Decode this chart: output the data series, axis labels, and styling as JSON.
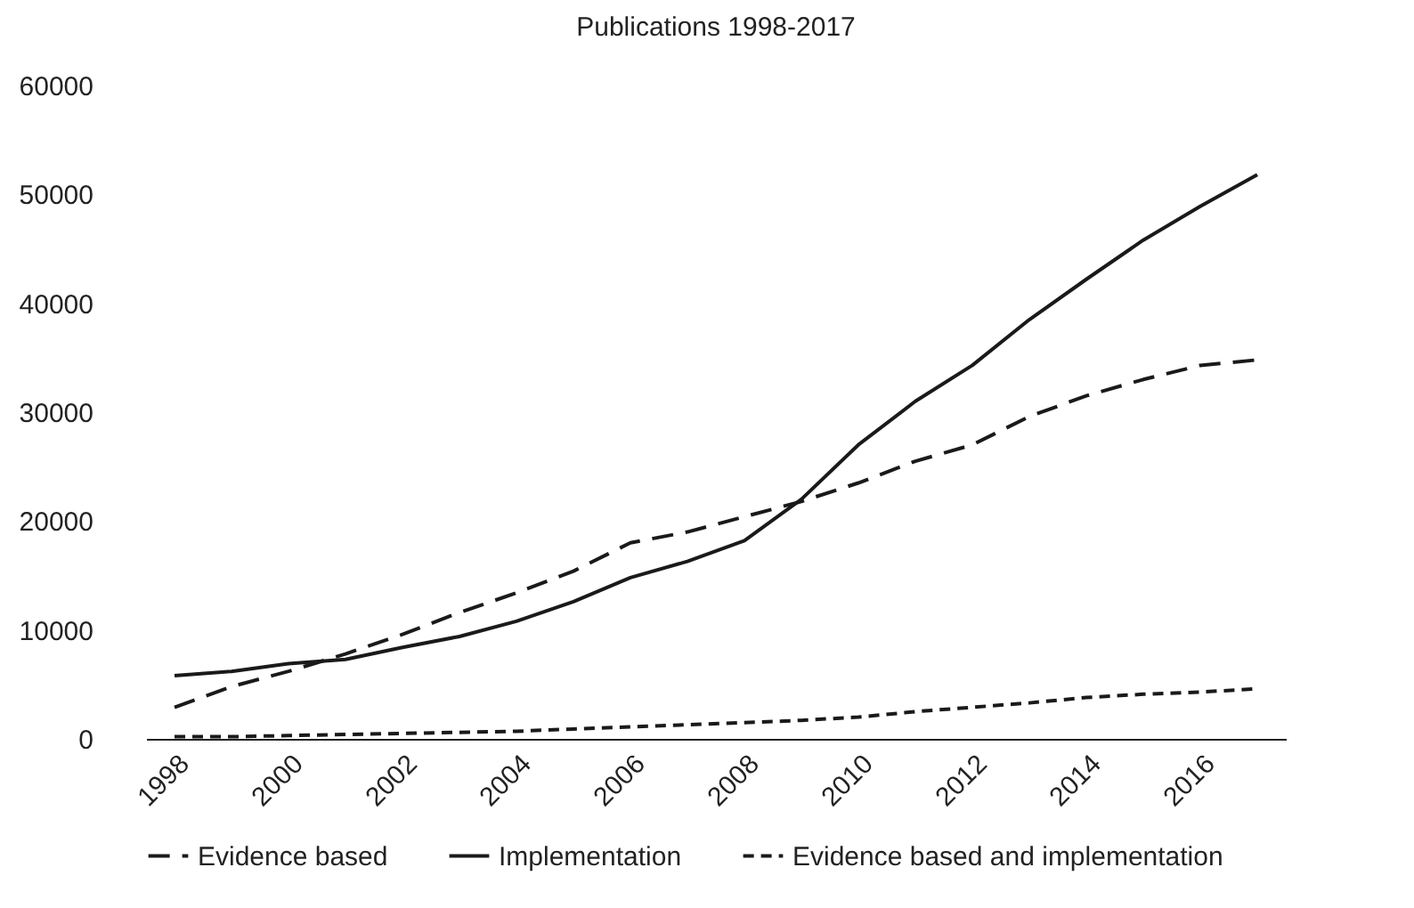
{
  "chart_data": {
    "type": "line",
    "title": "Publications 1998-2017",
    "categories": [
      "1998",
      null,
      "2000",
      null,
      "2002",
      null,
      "2004",
      null,
      "2006",
      null,
      "2008",
      null,
      "2010",
      null,
      "2012",
      null,
      "2014",
      null,
      "2016",
      null
    ],
    "series": [
      {
        "name": "Evidence based",
        "color": "#1a1a1a",
        "line_style": "dashed",
        "values": [
          2900,
          4800,
          6200,
          7800,
          9600,
          11600,
          13400,
          15400,
          18000,
          19000,
          20400,
          21800,
          23500,
          25500,
          27000,
          29600,
          31500,
          33000,
          34300,
          34800
        ]
      },
      {
        "name": "Implementation",
        "color": "#1a1a1a",
        "line_style": "solid",
        "values": [
          5800,
          6200,
          6900,
          7300,
          8400,
          9400,
          10800,
          12600,
          14800,
          16300,
          18200,
          22000,
          27000,
          31000,
          34300,
          38500,
          42200,
          45800,
          48900,
          51800
        ]
      },
      {
        "name": "Evidence based and implementation",
        "color": "#1a1a1a",
        "line_style": "dotted",
        "values": [
          200,
          200,
          300,
          400,
          500,
          600,
          700,
          900,
          1100,
          1300,
          1500,
          1700,
          2000,
          2500,
          2900,
          3300,
          3800,
          4100,
          4300,
          4600
        ]
      }
    ],
    "ylim": [
      0,
      60000
    ],
    "yticks": [
      0,
      10000,
      20000,
      30000,
      40000,
      50000,
      60000
    ],
    "grid": false,
    "legend": "bottom"
  }
}
